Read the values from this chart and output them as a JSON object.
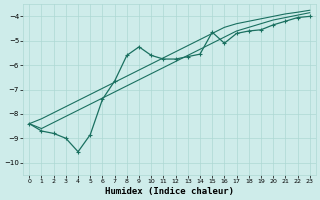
{
  "xlabel": "Humidex (Indice chaleur)",
  "ylabel": "",
  "bg_color": "#ceecea",
  "grid_color": "#aed8d4",
  "line_color": "#1a7060",
  "xlim": [
    -0.5,
    23.5
  ],
  "ylim": [
    -10.5,
    -3.5
  ],
  "xticks": [
    0,
    1,
    2,
    3,
    4,
    5,
    6,
    7,
    8,
    9,
    10,
    11,
    12,
    13,
    14,
    15,
    16,
    17,
    18,
    19,
    20,
    21,
    22,
    23
  ],
  "yticks": [
    -10,
    -9,
    -8,
    -7,
    -6,
    -5,
    -4
  ],
  "x_data": [
    0,
    1,
    2,
    3,
    4,
    5,
    6,
    7,
    8,
    9,
    10,
    11,
    12,
    13,
    14,
    15,
    16,
    17,
    18,
    19,
    20,
    21,
    22,
    23
  ],
  "y_main": [
    -8.4,
    -8.7,
    -8.8,
    -9.0,
    -9.55,
    -8.85,
    -7.4,
    -6.65,
    -5.6,
    -5.25,
    -5.6,
    -5.75,
    -5.75,
    -5.65,
    -5.55,
    -4.65,
    -5.1,
    -4.7,
    -4.6,
    -4.55,
    -4.35,
    -4.2,
    -4.05,
    -4.0
  ],
  "y_line1": [
    -8.4,
    -8.2,
    -7.95,
    -7.7,
    -7.45,
    -7.2,
    -6.95,
    -6.7,
    -6.45,
    -6.2,
    -5.95,
    -5.7,
    -5.45,
    -5.2,
    -4.95,
    -4.7,
    -4.45,
    -4.3,
    -4.2,
    -4.1,
    -4.0,
    -3.9,
    -3.83,
    -3.75
  ],
  "y_line2": [
    -8.4,
    -8.6,
    -8.35,
    -8.1,
    -7.85,
    -7.6,
    -7.35,
    -7.1,
    -6.85,
    -6.6,
    -6.35,
    -6.1,
    -5.85,
    -5.6,
    -5.35,
    -5.1,
    -4.85,
    -4.6,
    -4.45,
    -4.3,
    -4.15,
    -4.05,
    -3.95,
    -3.85
  ]
}
